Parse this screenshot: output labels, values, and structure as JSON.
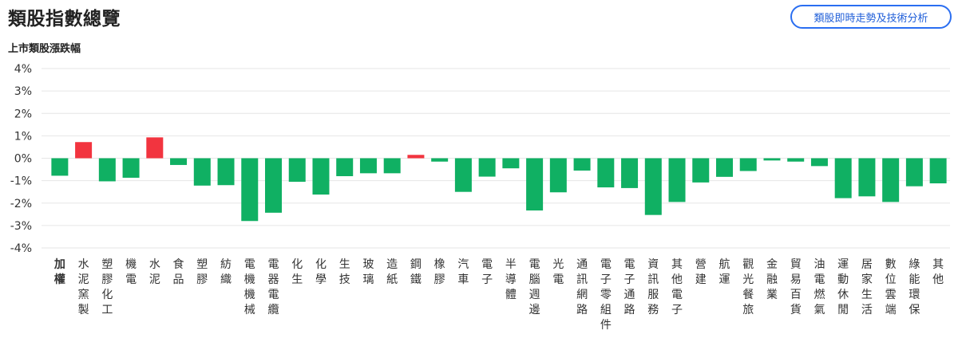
{
  "page": {
    "title": "類股指數總覽",
    "button_label": "類股即時走勢及技術分析",
    "chart_title": "上市類股漲跌幅"
  },
  "colors": {
    "up": "#f2343f",
    "down": "#10b063",
    "button": "#2a6ef1",
    "grid": "#e6e6e6"
  },
  "chart_data": {
    "type": "bar",
    "title": "上市類股漲跌幅",
    "ylim": [
      -4,
      4
    ],
    "ytick_labels": [
      "4%",
      "3%",
      "2%",
      "1%",
      "0%",
      "-1%",
      "-2%",
      "-3%",
      "-4%"
    ],
    "yticks": [
      4,
      3,
      2,
      1,
      0,
      -1,
      -2,
      -3,
      -4
    ],
    "grid": true,
    "categories": [
      "加權",
      "水泥窯製",
      "塑膠化工",
      "機電",
      "水泥",
      "食品",
      "塑膠",
      "紡織",
      "電機機械",
      "電器電纜",
      "化生",
      "化學",
      "生技",
      "玻璃",
      "造紙",
      "鋼鐵",
      "橡膠",
      "汽車",
      "電子",
      "半導體",
      "電腦週邊",
      "光電",
      "通訊網路",
      "電子零組件",
      "電子通路",
      "資訊服務",
      "其他電子",
      "營建",
      "航運",
      "觀光餐旅",
      "金融業",
      "貿易百貨",
      "油電燃氣",
      "運動休閒",
      "居家生活",
      "數位雲端",
      "綠能環保",
      "其他"
    ],
    "values": [
      -0.78,
      0.72,
      -1.03,
      -0.87,
      0.93,
      -0.3,
      -1.22,
      -1.2,
      -2.8,
      -2.43,
      -1.05,
      -1.62,
      -0.8,
      -0.67,
      -0.67,
      0.15,
      -0.15,
      -1.5,
      -0.82,
      -0.45,
      -2.33,
      -1.52,
      -0.55,
      -1.3,
      -1.33,
      -2.53,
      -1.95,
      -1.08,
      -0.83,
      -0.57,
      -0.1,
      -0.15,
      -0.35,
      -1.78,
      -1.7,
      -1.95,
      -1.25,
      -1.12
    ],
    "bold_categories": [
      "加權"
    ]
  }
}
